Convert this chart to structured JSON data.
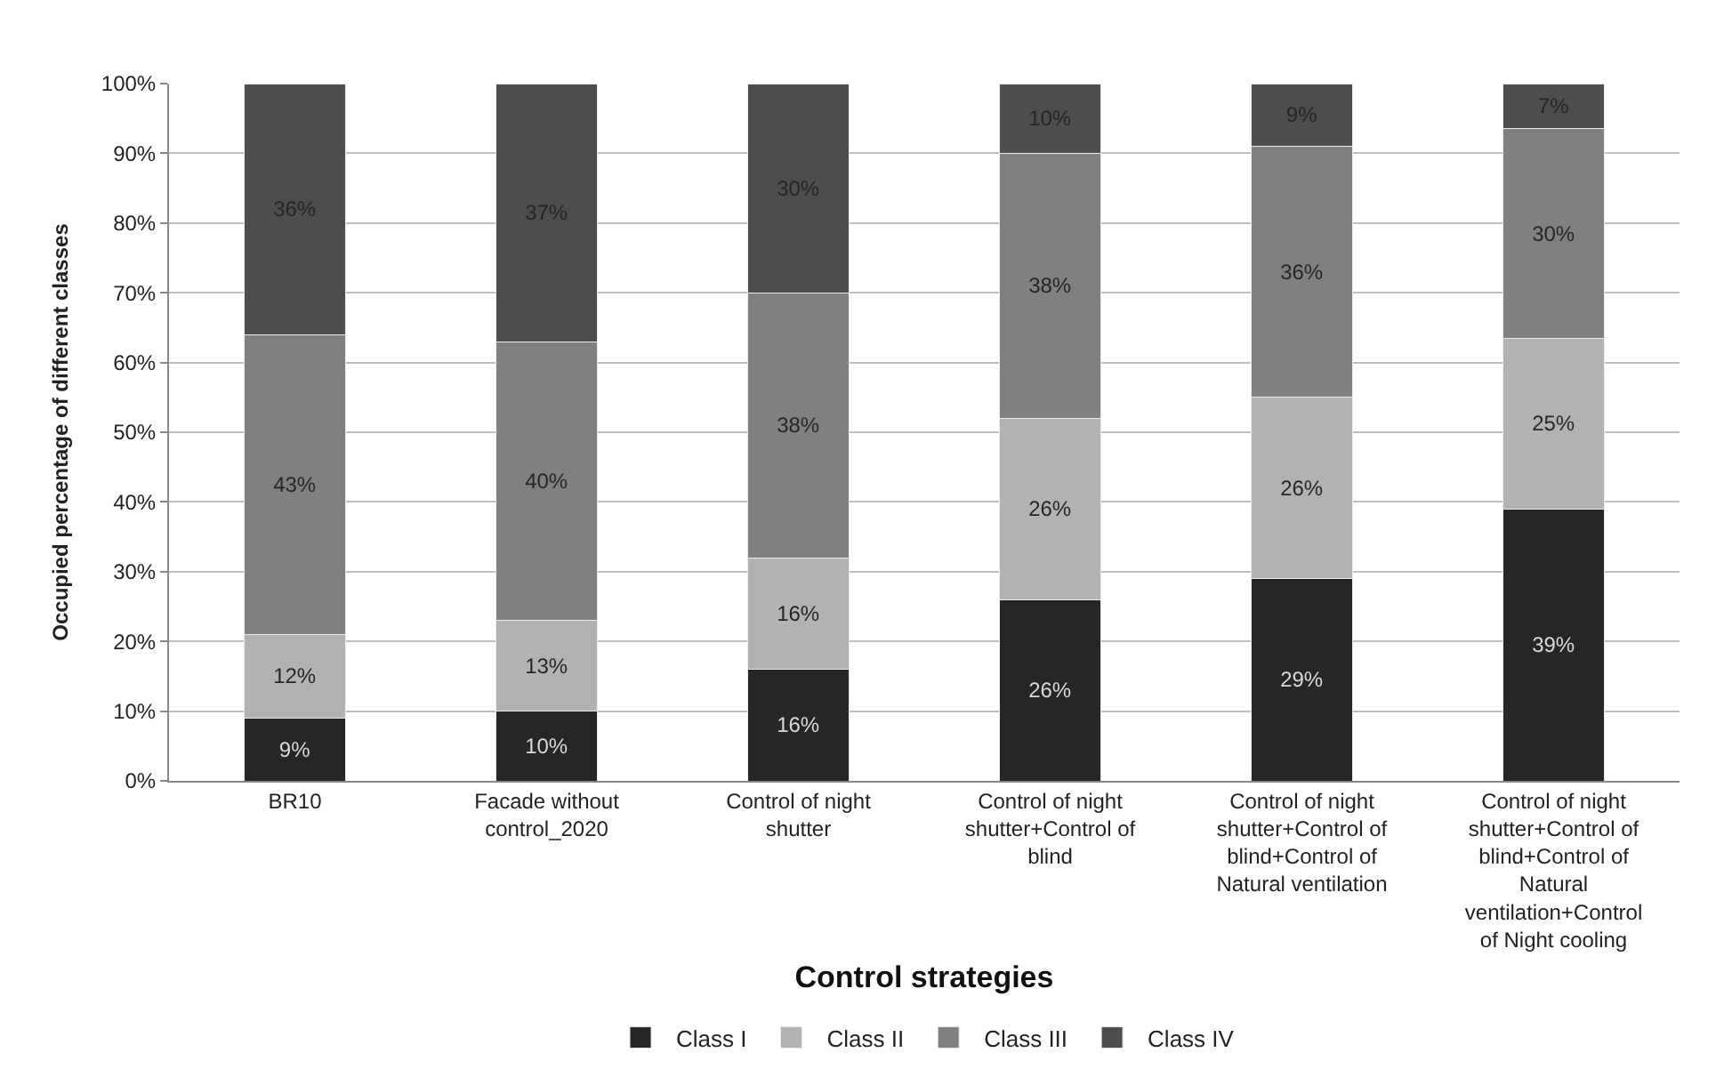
{
  "chart_data": {
    "type": "bar",
    "stacked": true,
    "xlabel": "Control strategies",
    "ylabel": "Occupied percentage of different classes",
    "categories": [
      "BR10",
      "Facade without control_2020",
      "Control of night shutter",
      "Control of night shutter+Control of blind",
      "Control of night shutter+Control of blind+Control of Natural ventilation",
      "Control of night shutter+Control of blind+Control of Natural ventilation+Control of Night cooling"
    ],
    "series": [
      {
        "name": "Class I",
        "color": "#262626",
        "values": [
          9,
          10,
          16,
          26,
          29,
          39
        ],
        "value_labels": [
          "9%",
          "10%",
          "16%",
          "26%",
          "29%",
          "39%"
        ]
      },
      {
        "name": "Class II",
        "color": "#b2b2b2",
        "values": [
          12,
          13,
          16,
          26,
          26,
          24.5
        ],
        "value_labels": [
          "12%",
          "13%",
          "16%",
          "26%",
          "26%",
          "25%"
        ]
      },
      {
        "name": "Class III",
        "color": "#808080",
        "values": [
          43,
          40,
          38,
          38,
          36,
          30
        ],
        "value_labels": [
          "43%",
          "40%",
          "38%",
          "38%",
          "36%",
          "30%"
        ]
      },
      {
        "name": "Class IV",
        "color": "#4d4d4d",
        "values": [
          36,
          37,
          30,
          10,
          9,
          6.5
        ],
        "value_labels": [
          "36%",
          "37%",
          "30%",
          "10%",
          "9%",
          "7%"
        ]
      }
    ],
    "ylim": [
      0,
      100
    ],
    "yticks": [
      {
        "value": 0,
        "label": "0%"
      },
      {
        "value": 10,
        "label": "10%"
      },
      {
        "value": 20,
        "label": "20%"
      },
      {
        "value": 30,
        "label": "30%"
      },
      {
        "value": 40,
        "label": "40%"
      },
      {
        "value": 50,
        "label": "50%"
      },
      {
        "value": 60,
        "label": "60%"
      },
      {
        "value": 70,
        "label": "70%"
      },
      {
        "value": 80,
        "label": "80%"
      },
      {
        "value": 90,
        "label": "90%"
      },
      {
        "value": 100,
        "label": "100%"
      }
    ],
    "grid": "y",
    "legend": "bottom"
  }
}
